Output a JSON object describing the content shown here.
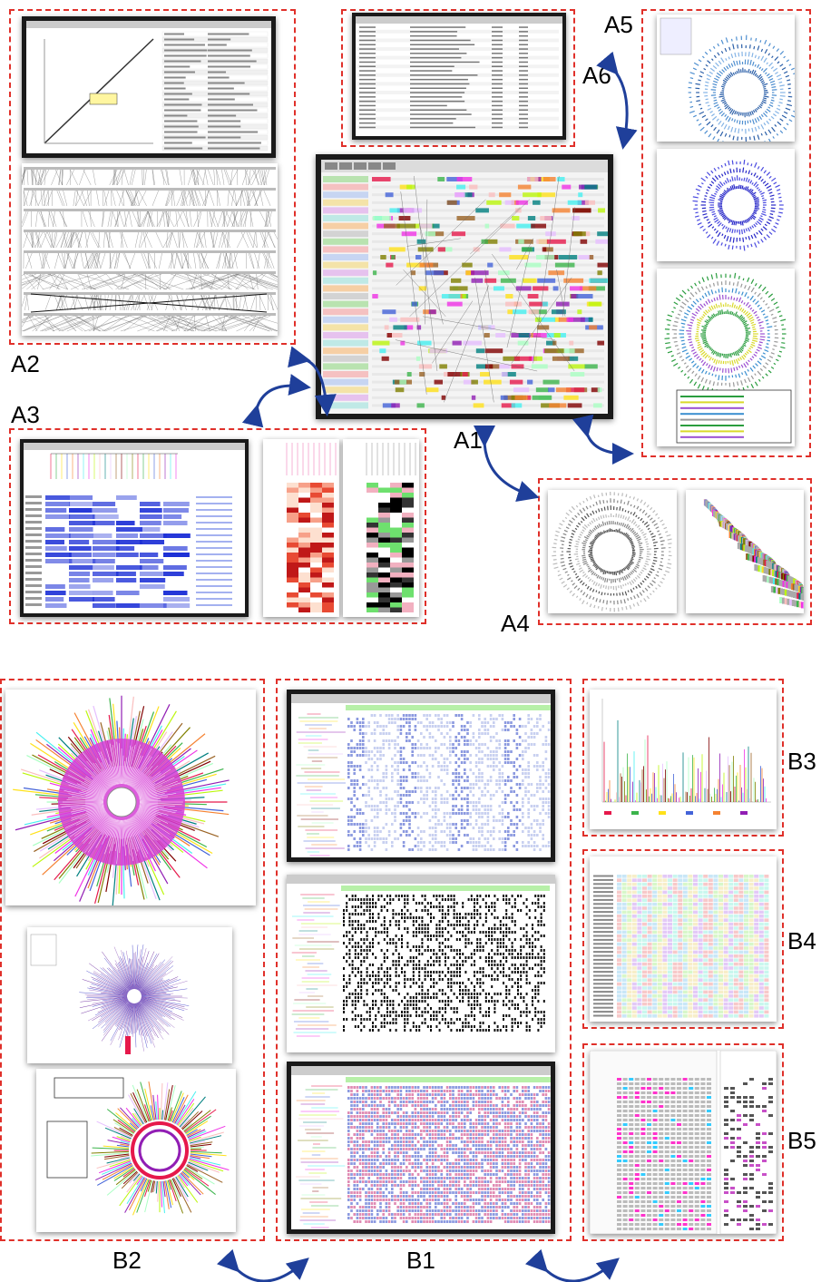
{
  "labels": {
    "a1": "A1",
    "a2": "A2",
    "a3": "A3",
    "a4": "A4",
    "a5": "A5",
    "a6": "A6",
    "b1": "B1",
    "b2": "B2",
    "b3": "B3",
    "b4": "B4",
    "b5": "B5"
  },
  "colors": {
    "panel_border": "#e0302a",
    "arrow": "#1f3f9a",
    "frame": "#1a1a1a",
    "alignment_blue": "#1c2fd6",
    "tree_magenta": "#d63fd6"
  }
}
